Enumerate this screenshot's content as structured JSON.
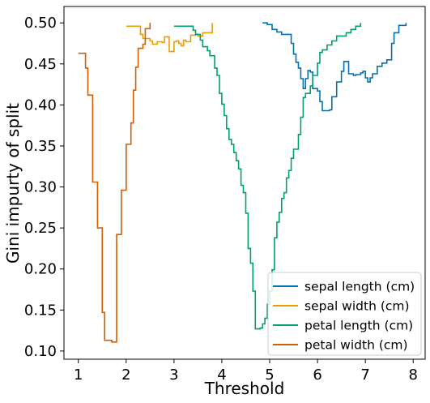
{
  "chart_data": {
    "type": "line",
    "title": "",
    "xlabel": "Threshold",
    "ylabel": "Gini impurty of split",
    "xlim": [
      0.7,
      8.25
    ],
    "ylim": [
      0.09,
      0.52
    ],
    "xticks": [
      1,
      2,
      3,
      4,
      5,
      6,
      7,
      8
    ],
    "yticks": [
      0.1,
      0.15,
      0.2,
      0.25,
      0.3,
      0.35,
      0.4,
      0.45,
      0.5
    ],
    "grid": false,
    "legend_position": "lower-right",
    "series": [
      {
        "name": "sepal length (cm)",
        "color": "#0072b2",
        "points": [
          [
            4.85,
            0.5
          ],
          [
            4.95,
            0.498
          ],
          [
            5.05,
            0.492
          ],
          [
            5.15,
            0.489
          ],
          [
            5.25,
            0.486
          ],
          [
            5.35,
            0.486
          ],
          [
            5.45,
            0.475
          ],
          [
            5.5,
            0.462
          ],
          [
            5.55,
            0.452
          ],
          [
            5.6,
            0.445
          ],
          [
            5.65,
            0.432
          ],
          [
            5.7,
            0.42
          ],
          [
            5.75,
            0.432
          ],
          [
            5.8,
            0.442
          ],
          [
            5.85,
            0.44
          ],
          [
            5.9,
            0.42
          ],
          [
            5.95,
            0.42
          ],
          [
            6.0,
            0.417
          ],
          [
            6.05,
            0.404
          ],
          [
            6.1,
            0.393
          ],
          [
            6.2,
            0.393
          ],
          [
            6.25,
            0.394
          ],
          [
            6.3,
            0.41
          ],
          [
            6.4,
            0.428
          ],
          [
            6.5,
            0.441
          ],
          [
            6.55,
            0.453
          ],
          [
            6.65,
            0.438
          ],
          [
            6.75,
            0.436
          ],
          [
            6.8,
            0.437
          ],
          [
            6.9,
            0.439
          ],
          [
            6.95,
            0.441
          ],
          [
            7.0,
            0.433
          ],
          [
            7.05,
            0.428
          ],
          [
            7.1,
            0.433
          ],
          [
            7.15,
            0.438
          ],
          [
            7.25,
            0.447
          ],
          [
            7.35,
            0.451
          ],
          [
            7.45,
            0.455
          ],
          [
            7.55,
            0.475
          ],
          [
            7.6,
            0.488
          ],
          [
            7.7,
            0.497
          ],
          [
            7.75,
            0.497
          ],
          [
            7.85,
            0.5
          ]
        ]
      },
      {
        "name": "sepal width (cm)",
        "color": "#e69f00",
        "points": [
          [
            2.0,
            0.496
          ],
          [
            2.25,
            0.496
          ],
          [
            2.3,
            0.486
          ],
          [
            2.35,
            0.481
          ],
          [
            2.5,
            0.478
          ],
          [
            2.55,
            0.474
          ],
          [
            2.65,
            0.477
          ],
          [
            2.75,
            0.476
          ],
          [
            2.8,
            0.483
          ],
          [
            2.85,
            0.483
          ],
          [
            2.9,
            0.465
          ],
          [
            3.0,
            0.477
          ],
          [
            3.05,
            0.478
          ],
          [
            3.1,
            0.475
          ],
          [
            3.15,
            0.472
          ],
          [
            3.2,
            0.479
          ],
          [
            3.25,
            0.477
          ],
          [
            3.3,
            0.477
          ],
          [
            3.35,
            0.485
          ],
          [
            3.45,
            0.486
          ],
          [
            3.5,
            0.484
          ],
          [
            3.55,
            0.484
          ],
          [
            3.6,
            0.488
          ],
          [
            3.75,
            0.488
          ],
          [
            3.8,
            0.5
          ]
        ]
      },
      {
        "name": "petal length (cm)",
        "color": "#009e73",
        "points": [
          [
            3.0,
            0.496
          ],
          [
            3.3,
            0.496
          ],
          [
            3.4,
            0.491
          ],
          [
            3.45,
            0.486
          ],
          [
            3.55,
            0.479
          ],
          [
            3.6,
            0.471
          ],
          [
            3.7,
            0.466
          ],
          [
            3.75,
            0.46
          ],
          [
            3.85,
            0.445
          ],
          [
            3.9,
            0.436
          ],
          [
            3.95,
            0.414
          ],
          [
            4.0,
            0.401
          ],
          [
            4.05,
            0.387
          ],
          [
            4.1,
            0.371
          ],
          [
            4.15,
            0.358
          ],
          [
            4.2,
            0.352
          ],
          [
            4.25,
            0.342
          ],
          [
            4.3,
            0.332
          ],
          [
            4.35,
            0.322
          ],
          [
            4.4,
            0.302
          ],
          [
            4.45,
            0.293
          ],
          [
            4.5,
            0.268
          ],
          [
            4.55,
            0.225
          ],
          [
            4.6,
            0.207
          ],
          [
            4.65,
            0.173
          ],
          [
            4.7,
            0.127
          ],
          [
            4.8,
            0.128
          ],
          [
            4.85,
            0.133
          ],
          [
            4.9,
            0.14
          ],
          [
            4.95,
            0.157
          ],
          [
            5.0,
            0.173
          ],
          [
            5.05,
            0.199
          ],
          [
            5.1,
            0.238
          ],
          [
            5.15,
            0.257
          ],
          [
            5.2,
            0.269
          ],
          [
            5.25,
            0.286
          ],
          [
            5.3,
            0.293
          ],
          [
            5.35,
            0.311
          ],
          [
            5.4,
            0.32
          ],
          [
            5.45,
            0.335
          ],
          [
            5.5,
            0.346
          ],
          [
            5.6,
            0.364
          ],
          [
            5.65,
            0.385
          ],
          [
            5.7,
            0.409
          ],
          [
            5.75,
            0.414
          ],
          [
            5.85,
            0.423
          ],
          [
            5.9,
            0.436
          ],
          [
            6.0,
            0.451
          ],
          [
            6.05,
            0.464
          ],
          [
            6.1,
            0.467
          ],
          [
            6.2,
            0.473
          ],
          [
            6.3,
            0.478
          ],
          [
            6.4,
            0.484
          ],
          [
            6.5,
            0.484
          ],
          [
            6.6,
            0.488
          ],
          [
            6.7,
            0.492
          ],
          [
            6.8,
            0.496
          ],
          [
            6.9,
            0.5
          ]
        ]
      },
      {
        "name": "petal width (cm)",
        "color": "#d55e00",
        "points": [
          [
            1.0,
            0.463
          ],
          [
            1.1,
            0.463
          ],
          [
            1.15,
            0.445
          ],
          [
            1.2,
            0.412
          ],
          [
            1.3,
            0.306
          ],
          [
            1.35,
            0.306
          ],
          [
            1.4,
            0.25
          ],
          [
            1.5,
            0.147
          ],
          [
            1.55,
            0.113
          ],
          [
            1.7,
            0.111
          ],
          [
            1.8,
            0.242
          ],
          [
            1.85,
            0.242
          ],
          [
            1.9,
            0.296
          ],
          [
            1.95,
            0.296
          ],
          [
            2.0,
            0.352
          ],
          [
            2.1,
            0.378
          ],
          [
            2.15,
            0.418
          ],
          [
            2.2,
            0.446
          ],
          [
            2.25,
            0.469
          ],
          [
            2.3,
            0.469
          ],
          [
            2.35,
            0.474
          ],
          [
            2.4,
            0.493
          ],
          [
            2.45,
            0.493
          ],
          [
            2.5,
            0.5
          ]
        ]
      }
    ]
  }
}
